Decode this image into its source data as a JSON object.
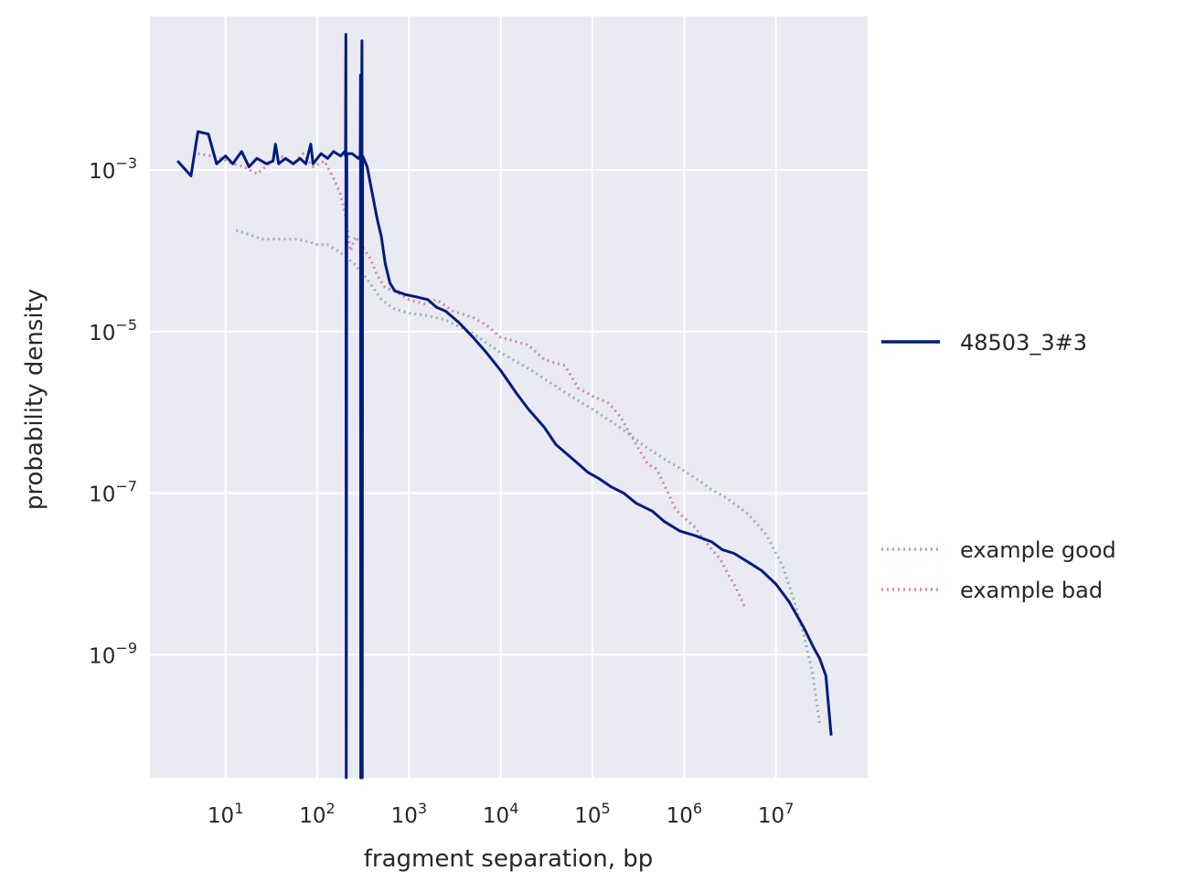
{
  "chart_data": {
    "type": "line",
    "xlabel": "fragment separation, bp",
    "ylabel": "probability density",
    "x_scale": "log",
    "y_scale": "log",
    "xlim": [
      1.5,
      100000000
    ],
    "ylim": [
      3e-11,
      0.08
    ],
    "grid": true,
    "legend_placement": "right",
    "x_ticks": [
      {
        "value": 10,
        "base": "10",
        "exp": "1"
      },
      {
        "value": 100,
        "base": "10",
        "exp": "2"
      },
      {
        "value": 1000,
        "base": "10",
        "exp": "3"
      },
      {
        "value": 10000,
        "base": "10",
        "exp": "4"
      },
      {
        "value": 100000,
        "base": "10",
        "exp": "5"
      },
      {
        "value": 1000000,
        "base": "10",
        "exp": "6"
      },
      {
        "value": 10000000,
        "base": "10",
        "exp": "7"
      }
    ],
    "y_ticks": [
      {
        "value": 0.001,
        "base": "10",
        "exp": "−3"
      },
      {
        "value": 1e-05,
        "base": "10",
        "exp": "−5"
      },
      {
        "value": 1e-07,
        "base": "10",
        "exp": "−7"
      },
      {
        "value": 1e-09,
        "base": "10",
        "exp": "−9"
      }
    ],
    "series": [
      {
        "name": "48503_3#3",
        "color": "#001c7f",
        "style": "solid",
        "points": [
          [
            3,
            0.0013
          ],
          [
            4.2,
            0.00085
          ],
          [
            5,
            0.003
          ],
          [
            6.5,
            0.0028
          ],
          [
            8,
            0.0012
          ],
          [
            10,
            0.0015
          ],
          [
            12,
            0.0012
          ],
          [
            15,
            0.0017
          ],
          [
            18,
            0.0011
          ],
          [
            22,
            0.0014
          ],
          [
            28,
            0.0012
          ],
          [
            33,
            0.0013
          ],
          [
            35,
            0.0021
          ],
          [
            38,
            0.0012
          ],
          [
            45,
            0.0014
          ],
          [
            55,
            0.0012
          ],
          [
            65,
            0.0014
          ],
          [
            75,
            0.0012
          ],
          [
            85,
            0.0021
          ],
          [
            90,
            0.0012
          ],
          [
            110,
            0.0016
          ],
          [
            130,
            0.0014
          ],
          [
            150,
            0.0017
          ],
          [
            180,
            0.0015
          ],
          [
            199,
            0.0017
          ],
          [
            203,
            0.0015
          ],
          [
            205,
            0.048
          ],
          [
            207,
            2e-11
          ],
          [
            210,
            0.0016
          ],
          [
            240,
            0.0016
          ],
          [
            280,
            0.0014
          ],
          [
            294,
            0.0015
          ],
          [
            296,
            0.015
          ],
          [
            298,
            2e-11
          ],
          [
            300,
            0.0015
          ],
          [
            304,
            0.0016
          ],
          [
            307,
            0.04
          ],
          [
            309,
            2e-11
          ],
          [
            312,
            0.0015
          ],
          [
            350,
            0.0011
          ],
          [
            400,
            0.0005
          ],
          [
            450,
            0.00025
          ],
          [
            500,
            0.00015
          ],
          [
            550,
            7e-05
          ],
          [
            620,
            4e-05
          ],
          [
            700,
            3.2e-05
          ],
          [
            900,
            2.9e-05
          ],
          [
            1200,
            2.7e-05
          ],
          [
            1600,
            2.5e-05
          ],
          [
            2000,
            2e-05
          ],
          [
            2500,
            1.8e-05
          ],
          [
            3500,
            1.3e-05
          ],
          [
            5000,
            8.5e-06
          ],
          [
            7000,
            5.5e-06
          ],
          [
            10000,
            3.3e-06
          ],
          [
            15000,
            1.7e-06
          ],
          [
            20000,
            1.1e-06
          ],
          [
            30000,
            6.5e-07
          ],
          [
            40000,
            4e-07
          ],
          [
            60000,
            2.7e-07
          ],
          [
            90000,
            1.8e-07
          ],
          [
            120000,
            1.5e-07
          ],
          [
            160000,
            1.2e-07
          ],
          [
            220000,
            1e-07
          ],
          [
            300000,
            7.5e-08
          ],
          [
            450000,
            6e-08
          ],
          [
            600000,
            4.5e-08
          ],
          [
            900000,
            3.4e-08
          ],
          [
            1300000,
            3e-08
          ],
          [
            2000000,
            2.5e-08
          ],
          [
            2600000,
            2e-08
          ],
          [
            3500000,
            1.8e-08
          ],
          [
            5000000,
            1.4e-08
          ],
          [
            7000000,
            1.1e-08
          ],
          [
            10000000,
            7.5e-09
          ],
          [
            14000000,
            4.5e-09
          ],
          [
            20000000,
            2.2e-09
          ],
          [
            26000000,
            1.2e-09
          ],
          [
            30000000,
            9e-10
          ],
          [
            35000000,
            5.5e-10
          ],
          [
            40000000,
            1e-10
          ]
        ]
      },
      {
        "name": "example good",
        "color": "#8fb5ac",
        "style": "dotted",
        "points": [
          [
            13,
            0.00018
          ],
          [
            18,
            0.00016
          ],
          [
            25,
            0.00014
          ],
          [
            40,
            0.00014
          ],
          [
            60,
            0.00014
          ],
          [
            80,
            0.00013
          ],
          [
            100,
            0.00012
          ],
          [
            130,
            0.00012
          ],
          [
            180,
            9.5e-05
          ],
          [
            250,
            7e-05
          ],
          [
            350,
            4.5e-05
          ],
          [
            500,
            2.5e-05
          ],
          [
            700,
            1.9e-05
          ],
          [
            1000,
            1.7e-05
          ],
          [
            1500,
            1.6e-05
          ],
          [
            2500,
            1.4e-05
          ],
          [
            5000,
            9.5e-06
          ],
          [
            10000,
            5.5e-06
          ],
          [
            20000,
            3.5e-06
          ],
          [
            40000,
            2.1e-06
          ],
          [
            70000,
            1.4e-06
          ],
          [
            100000,
            1.1e-06
          ],
          [
            200000,
            6.5e-07
          ],
          [
            400000,
            3.6e-07
          ],
          [
            700000,
            2.4e-07
          ],
          [
            1000000,
            1.9e-07
          ],
          [
            1500000,
            1.4e-07
          ],
          [
            2000000,
            1.1e-07
          ],
          [
            3000000,
            8.5e-08
          ],
          [
            5000000,
            5.5e-08
          ],
          [
            8000000,
            3e-08
          ],
          [
            12000000,
            1.2e-08
          ],
          [
            16000000,
            4.5e-09
          ],
          [
            20000000,
            1.8e-09
          ],
          [
            25000000,
            6e-10
          ],
          [
            30000000,
            1.4e-10
          ]
        ]
      },
      {
        "name": "example bad",
        "color": "#d087a3",
        "style": "dotted",
        "points": [
          [
            5,
            0.0016
          ],
          [
            7,
            0.0015
          ],
          [
            9,
            0.0014
          ],
          [
            12,
            0.0012
          ],
          [
            16,
            0.0011
          ],
          [
            22,
            0.0009
          ],
          [
            30,
            0.0012
          ],
          [
            40,
            0.0015
          ],
          [
            55,
            0.0012
          ],
          [
            70,
            0.0016
          ],
          [
            90,
            0.0011
          ],
          [
            120,
            0.0013
          ],
          [
            150,
            0.0008
          ],
          [
            180,
            0.0005
          ],
          [
            200,
            0.0003
          ],
          [
            230,
            0.0001
          ],
          [
            260,
            0.00015
          ],
          [
            300,
            0.00012
          ],
          [
            380,
            8e-05
          ],
          [
            450,
            5e-05
          ],
          [
            550,
            3.5e-05
          ],
          [
            700,
            3.2e-05
          ],
          [
            1000,
            2.5e-05
          ],
          [
            1500,
            2.2e-05
          ],
          [
            2000,
            2.5e-05
          ],
          [
            3000,
            1.8e-05
          ],
          [
            5000,
            1.5e-05
          ],
          [
            7000,
            1.2e-05
          ],
          [
            10000,
            8.5e-06
          ],
          [
            15000,
            7.5e-06
          ],
          [
            20000,
            6.8e-06
          ],
          [
            30000,
            4.5e-06
          ],
          [
            50000,
            3.8e-06
          ],
          [
            70000,
            2e-06
          ],
          [
            100000,
            1.6e-06
          ],
          [
            150000,
            1.3e-06
          ],
          [
            200000,
            9e-07
          ],
          [
            300000,
            4e-07
          ],
          [
            400000,
            2.3e-07
          ],
          [
            500000,
            2e-07
          ],
          [
            600000,
            1.3e-07
          ],
          [
            700000,
            9e-08
          ],
          [
            800000,
            6.5e-08
          ],
          [
            900000,
            5.5e-08
          ],
          [
            1000000,
            5e-08
          ],
          [
            1300000,
            3.8e-08
          ],
          [
            1600000,
            2.8e-08
          ],
          [
            2000000,
            2e-08
          ],
          [
            2500000,
            1.5e-08
          ],
          [
            3000000,
            1e-08
          ],
          [
            3500000,
            7.5e-09
          ],
          [
            4000000,
            5.5e-09
          ],
          [
            4500000,
            4e-09
          ]
        ]
      }
    ]
  }
}
